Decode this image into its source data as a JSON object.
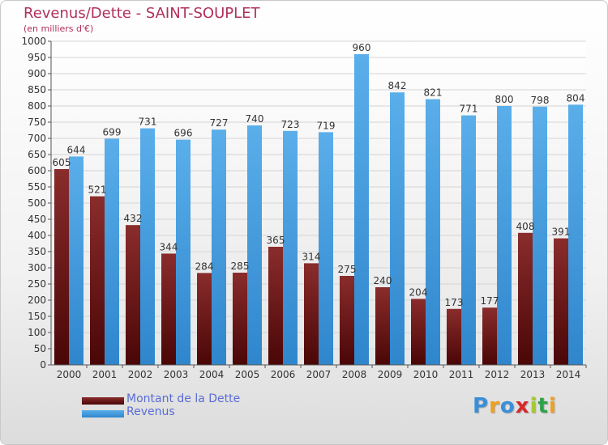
{
  "header": {
    "title": "Revenus/Dette - SAINT-SOUPLET",
    "unit": "(en milliers d'€)"
  },
  "brand": {
    "name": "Proxiti",
    "letters": [
      "P",
      "r",
      "o",
      "x",
      "i",
      "t",
      "i"
    ],
    "colors": [
      "#3a8fd8",
      "#f0a020",
      "#3a8fd8",
      "#d8282a",
      "#a6c832",
      "#2fa24a",
      "#f0a020"
    ]
  },
  "legend": {
    "items": [
      {
        "label": "Montant de la Dette",
        "color": "#6a1010"
      },
      {
        "label": "Revenus",
        "color": "#4a9fe0"
      }
    ]
  },
  "chart_data": {
    "type": "bar",
    "title": "Revenus/Dette - SAINT-SOUPLET",
    "ylabel": "(en milliers d'€)",
    "categories": [
      "2000",
      "2001",
      "2002",
      "2003",
      "2004",
      "2005",
      "2006",
      "2007",
      "2008",
      "2009",
      "2010",
      "2011",
      "2012",
      "2013",
      "2014"
    ],
    "series": [
      {
        "name": "Montant de la Dette",
        "color": "#7a1a1a",
        "values": [
          605,
          521,
          432,
          344,
          284,
          285,
          365,
          314,
          275,
          240,
          204,
          173,
          177,
          408,
          391
        ]
      },
      {
        "name": "Revenus",
        "color": "#4a9fe0",
        "values": [
          644,
          699,
          731,
          696,
          727,
          740,
          723,
          719,
          960,
          842,
          821,
          771,
          800,
          798,
          804
        ]
      }
    ],
    "ylim": [
      0,
      1000
    ],
    "yticks": [
      0,
      50,
      100,
      150,
      200,
      250,
      300,
      350,
      400,
      450,
      500,
      550,
      600,
      650,
      700,
      750,
      800,
      850,
      900,
      950,
      1000
    ],
    "grid": true,
    "legend_position": "bottom-left"
  }
}
